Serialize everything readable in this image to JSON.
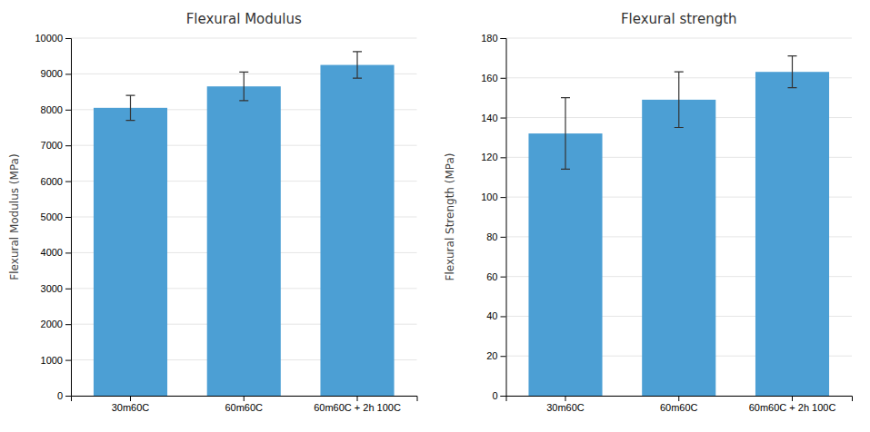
{
  "chart_data": [
    {
      "type": "bar",
      "title": "Flexural Modulus",
      "categories": [
        "30m60C",
        "60m60C",
        "60m60C + 2h 100C"
      ],
      "values": [
        8050,
        8650,
        9250
      ],
      "errors": [
        350,
        400,
        370
      ],
      "ylabel": "Flexural Modulus (MPa)",
      "ylim": [
        0,
        10000
      ],
      "yticks": [
        0,
        1000,
        2000,
        3000,
        4000,
        5000,
        6000,
        7000,
        8000,
        9000,
        10000
      ],
      "color": "#4C9FD4",
      "grid": true
    },
    {
      "type": "bar",
      "title": "Flexural strength",
      "categories": [
        "30m60C",
        "60m60C",
        "60m60C + 2h 100C"
      ],
      "values": [
        132,
        149,
        163
      ],
      "errors": [
        18,
        14,
        8
      ],
      "ylabel": "Flexural Strength (MPa)",
      "ylim": [
        0,
        180
      ],
      "yticks": [
        0,
        20,
        40,
        60,
        80,
        100,
        120,
        140,
        160,
        180
      ],
      "color": "#4C9FD4",
      "grid": true
    }
  ]
}
